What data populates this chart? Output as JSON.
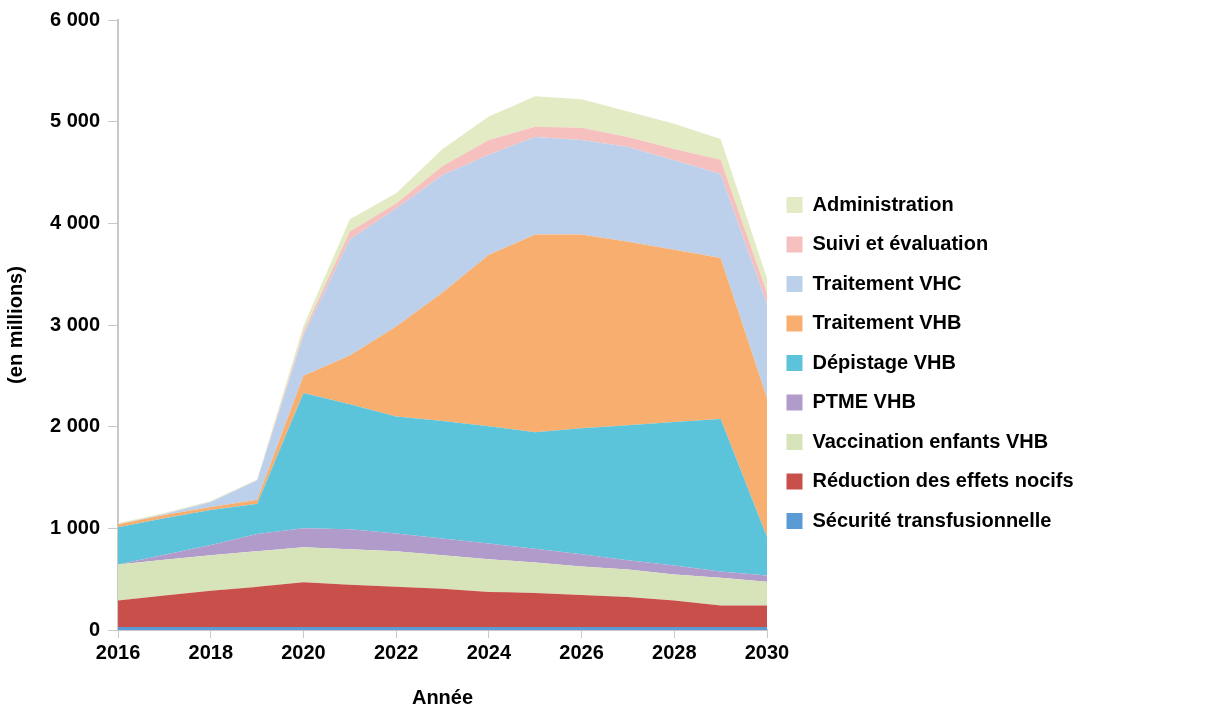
{
  "chart_data": {
    "type": "area",
    "stacked": true,
    "xlabel": "Année",
    "ylabel": "(en millions)",
    "legend": "right",
    "grid": false,
    "x": [
      2016,
      2017,
      2018,
      2019,
      2020,
      2021,
      2022,
      2023,
      2024,
      2025,
      2026,
      2027,
      2028,
      2029,
      2030
    ],
    "xlim": [
      2016,
      2030
    ],
    "xticks": [
      2016,
      2018,
      2020,
      2022,
      2024,
      2026,
      2028,
      2030
    ],
    "ylim": [
      0,
      6000
    ],
    "yticks": [
      0,
      {
        "value": 1000,
        "label": "1 000"
      },
      {
        "value": 2000,
        "label": "2 000"
      },
      {
        "value": 3000,
        "label": "3 000"
      },
      {
        "value": 4000,
        "label": "4 000"
      },
      {
        "value": 5000,
        "label": "5 000"
      },
      {
        "value": 6000,
        "label": "6 000"
      }
    ],
    "series": [
      {
        "name": "Sécurité transfusionnelle",
        "color": "#5b9bd5",
        "values": [
          30,
          30,
          30,
          30,
          30,
          30,
          30,
          30,
          30,
          30,
          30,
          30,
          30,
          30,
          30
        ]
      },
      {
        "name": "Réduction des effets nocifs",
        "color": "#c9504a",
        "values": [
          260,
          310,
          355,
          395,
          440,
          415,
          395,
          375,
          345,
          335,
          315,
          295,
          260,
          210,
          210
        ]
      },
      {
        "name": "Vaccination enfants VHB",
        "color": "#d7e4b9",
        "values": [
          355,
          350,
          350,
          350,
          345,
          350,
          350,
          330,
          320,
          300,
          280,
          270,
          255,
          275,
          235
        ]
      },
      {
        "name": "PTME VHB",
        "color": "#b09bcb",
        "values": [
          0,
          50,
          100,
          170,
          185,
          195,
          175,
          165,
          155,
          135,
          120,
          90,
          90,
          60,
          60
        ]
      },
      {
        "name": "Dépistage VHB",
        "color": "#5bc3da",
        "values": [
          365,
          360,
          345,
          295,
          1330,
          1230,
          1150,
          1155,
          1155,
          1145,
          1240,
          1330,
          1410,
          1500,
          380
        ]
      },
      {
        "name": "Traitement VHB",
        "color": "#f7ae6e",
        "values": [
          30,
          30,
          30,
          40,
          170,
          480,
          885,
          1265,
          1685,
          1945,
          1905,
          1805,
          1695,
          1585,
          1365
        ]
      },
      {
        "name": "Traitement VHC",
        "color": "#bcd0eb",
        "values": [
          0,
          10,
          50,
          190,
          400,
          1140,
          1160,
          1155,
          985,
          960,
          930,
          930,
          880,
          825,
          925
        ]
      },
      {
        "name": "Suivi et évaluation",
        "color": "#f5c0bd",
        "values": [
          0,
          0,
          0,
          5,
          30,
          80,
          50,
          90,
          145,
          100,
          120,
          100,
          110,
          140,
          110
        ]
      },
      {
        "name": "Administration",
        "color": "#e3ebc4",
        "values": [
          10,
          10,
          10,
          5,
          60,
          120,
          100,
          165,
          230,
          300,
          280,
          250,
          250,
          205,
          145
        ]
      }
    ]
  }
}
